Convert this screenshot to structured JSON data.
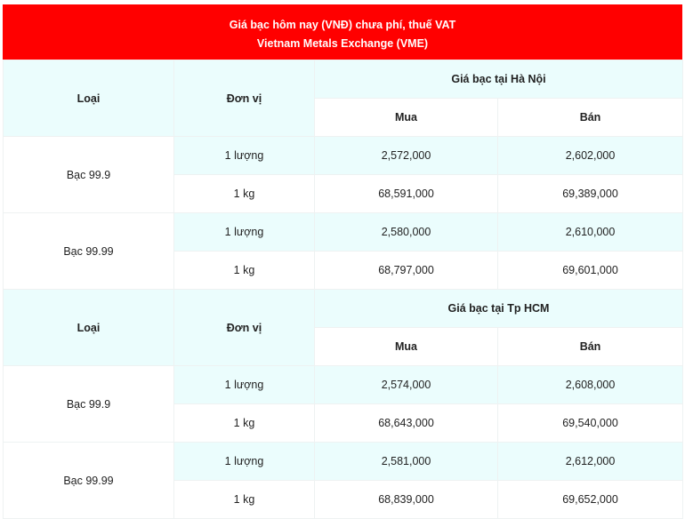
{
  "title": {
    "line1": "Giá bạc hôm nay (VNĐ) chưa phí, thuế VAT",
    "line2": "Vietnam Metals Exchange (VME)"
  },
  "colors": {
    "header_bg": "#ff0000",
    "highlight_bg": "#ebfdfd"
  },
  "sections": [
    {
      "headers": {
        "type": "Loại",
        "unit": "Đơn vị",
        "location": "Giá bạc tại Hà Nội",
        "buy": "Mua",
        "sell": "Bán"
      },
      "groups": [
        {
          "type": "Bạc 99.9",
          "rows": [
            {
              "unit": "1 lượng",
              "buy": "2,572,000",
              "sell": "2,602,000"
            },
            {
              "unit": "1 kg",
              "buy": "68,591,000",
              "sell": "69,389,000"
            }
          ]
        },
        {
          "type": "Bạc 99.99",
          "rows": [
            {
              "unit": "1 lượng",
              "buy": "2,580,000",
              "sell": "2,610,000"
            },
            {
              "unit": "1 kg",
              "buy": "68,797,000",
              "sell": "69,601,000"
            }
          ]
        }
      ]
    },
    {
      "headers": {
        "type": "Loại",
        "unit": "Đơn vị",
        "location": "Giá bạc tại Tp HCM",
        "buy": "Mua",
        "sell": "Bán"
      },
      "groups": [
        {
          "type": "Bạc 99.9",
          "rows": [
            {
              "unit": "1 lượng",
              "buy": "2,574,000",
              "sell": "2,608,000"
            },
            {
              "unit": "1 kg",
              "buy": "68,643,000",
              "sell": "69,540,000"
            }
          ]
        },
        {
          "type": "Bạc 99.99",
          "rows": [
            {
              "unit": "1 lượng",
              "buy": "2,581,000",
              "sell": "2,612,000"
            },
            {
              "unit": "1 kg",
              "buy": "68,839,000",
              "sell": "69,652,000"
            }
          ]
        }
      ]
    }
  ]
}
